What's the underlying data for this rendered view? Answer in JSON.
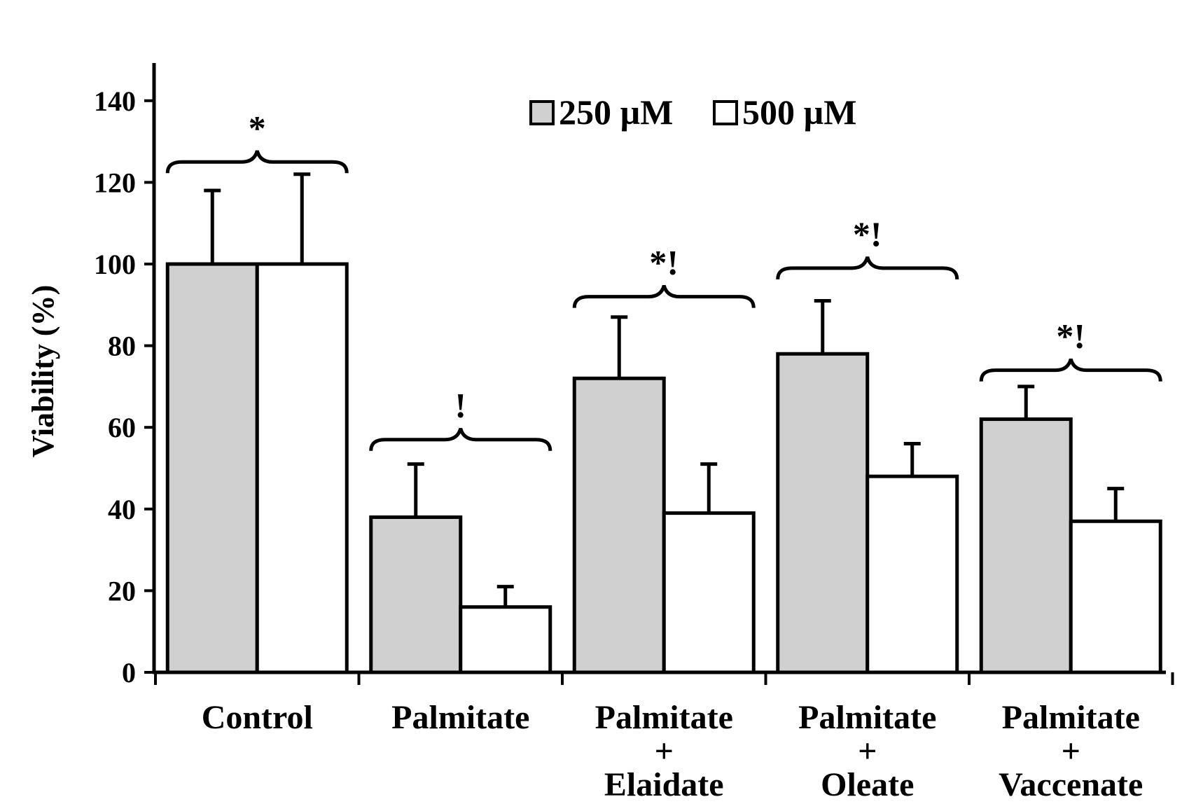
{
  "chart_data": {
    "type": "bar",
    "ylabel": "Viability (%)",
    "xlabel": "",
    "ylim": [
      0,
      150
    ],
    "yticks": [
      0,
      20,
      40,
      60,
      80,
      100,
      120,
      140
    ],
    "ytick_labels": [
      "0",
      "20",
      "40",
      "60",
      "80",
      "100",
      "120",
      "140"
    ],
    "grid": false,
    "legend_position": "top-center",
    "categories": [
      {
        "lines": [
          "Control"
        ]
      },
      {
        "lines": [
          "Palmitate"
        ]
      },
      {
        "lines": [
          "Palmitate",
          "+",
          "Elaidate"
        ]
      },
      {
        "lines": [
          "Palmitate",
          "+",
          "Oleate"
        ]
      },
      {
        "lines": [
          "Palmitate",
          "+",
          "Vaccenate"
        ]
      }
    ],
    "series": [
      {
        "name": "250 µM",
        "color": "#d0d0d0",
        "values": [
          100,
          38,
          72,
          78,
          62
        ],
        "errors": [
          18,
          13,
          15,
          13,
          8
        ]
      },
      {
        "name": "500 µM",
        "color": "#ffffff",
        "values": [
          100,
          16,
          39,
          48,
          37
        ],
        "errors": [
          22,
          5,
          12,
          8,
          8
        ]
      }
    ],
    "annotations": [
      {
        "category": 0,
        "text": "*",
        "level": 125
      },
      {
        "category": 1,
        "text": "!",
        "level": 57
      },
      {
        "category": 2,
        "text": "*!",
        "level": 92
      },
      {
        "category": 3,
        "text": "*!",
        "level": 99
      },
      {
        "category": 4,
        "text": "*!",
        "level": 74
      }
    ]
  }
}
